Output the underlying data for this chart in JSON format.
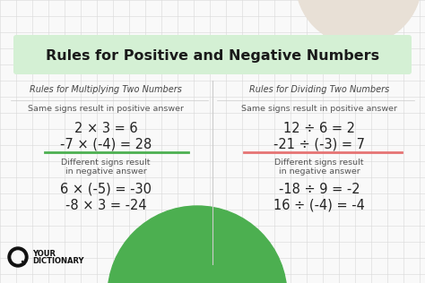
{
  "title": "Rules for Positive and Negative Numbers",
  "title_bg": "#d4f0d4",
  "bg_color": "#f9f9f9",
  "grid_color": "#d8d8d8",
  "left_col_header": "Rules for Multiplying Two Numbers",
  "right_col_header": "Rules for Dividing Two Numbers",
  "left_same_label": "Same signs result in positive answer",
  "right_same_label": "Same signs result in positive answer",
  "left_same_eq1": "2 × 3 = 6",
  "left_same_eq2": "-7 × (-4) = 28",
  "right_same_eq1": "12 ÷ 6 = 2",
  "right_same_eq2": "-21 ÷ (-3) = 7",
  "divider_color_left": "#4caf50",
  "divider_color_right": "#e57373",
  "left_diff_label1": "Different signs result",
  "left_diff_label2": "in negative answer",
  "right_diff_label1": "Different signs result",
  "right_diff_label2": "in negative answer",
  "left_diff_eq1": "6 × (-5) = -30",
  "left_diff_eq2": "-8 × 3 = -24",
  "right_diff_eq1": "-18 ÷ 9 = -2",
  "right_diff_eq2": "16 ÷ (-4) = -4",
  "diff_label_color": "#555555",
  "logo_text1": "YOUR",
  "logo_text2": "DICTIONARY",
  "col_header_color": "#444444",
  "same_label_color": "#555555",
  "eq_color": "#222222",
  "decor_circle_top_color": "#e8e0d6",
  "decor_circle_bottom_color": "#4caf50",
  "fig_w": 4.74,
  "fig_h": 3.16,
  "dpi": 100
}
